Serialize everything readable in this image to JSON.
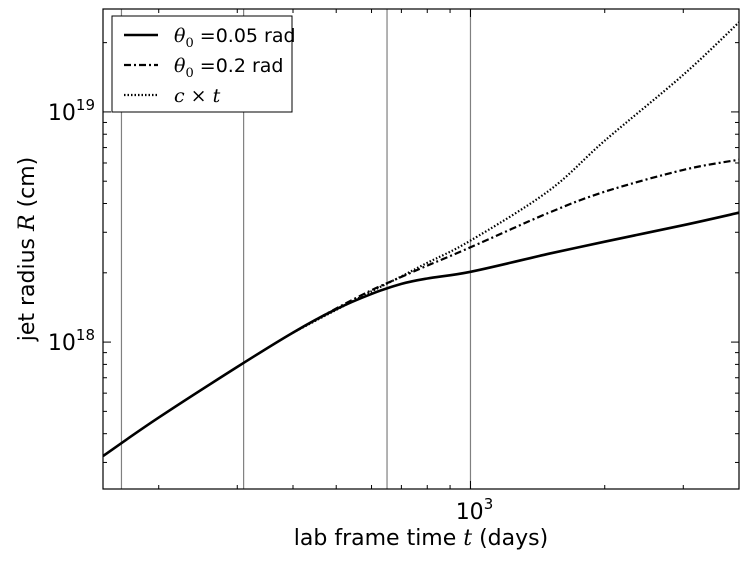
{
  "chart_data": {
    "type": "line",
    "title": "",
    "xlabel": {
      "prefix": "lab frame time ",
      "math": "t",
      "suffix": " (days)"
    },
    "ylabel": {
      "prefix": "jet radius ",
      "math": "R",
      "suffix": " (cm)"
    },
    "x_scale": "log",
    "y_scale": "log",
    "xlim": [
      150,
      4000
    ],
    "ylim": [
      2.3e+17,
      2.8e+19
    ],
    "x_ticks": [
      {
        "value": 1000,
        "label": "10",
        "exp": "3"
      }
    ],
    "y_ticks": [
      {
        "value": 1e+18,
        "label": "10",
        "exp": "18"
      },
      {
        "value": 1e+19,
        "label": "10",
        "exp": "19"
      }
    ],
    "grid": false,
    "legend_position": "top-left",
    "vertical_lines": [
      165,
      310,
      650,
      1000
    ],
    "series": [
      {
        "name": "θ0 =0.05 rad",
        "legend_math": "θ",
        "legend_sub": "0",
        "legend_rest": " =0.05 rad",
        "style": "solid",
        "x": [
          150,
          200,
          300,
          400,
          500,
          600,
          700,
          800,
          1000,
          1500,
          2000,
          3000,
          4000
        ],
        "y": [
          3.2e+17,
          4.7e+17,
          7.8e+17,
          1.1e+18,
          1.39e+18,
          1.62e+18,
          1.79e+18,
          1.89e+18,
          2.02e+18,
          2.42e+18,
          2.73e+18,
          3.22e+18,
          3.65e+18
        ]
      },
      {
        "name": "θ0 =0.2 rad",
        "legend_math": "θ",
        "legend_sub": "0",
        "legend_rest": " =0.2 rad",
        "style": "dashdot",
        "x": [
          400,
          500,
          600,
          700,
          800,
          1000,
          1500,
          2000,
          3000,
          4000
        ],
        "y": [
          1.1e+18,
          1.4e+18,
          1.68e+18,
          1.92e+18,
          2.15e+18,
          2.58e+18,
          3.65e+18,
          4.5e+18,
          5.6e+18,
          6.2e+18
        ]
      },
      {
        "name": "c × t",
        "legend_math": "c × t",
        "legend_sub": "",
        "legend_rest": "",
        "style": "dotted",
        "x": [
          400,
          500,
          600,
          700,
          800,
          1000,
          1500,
          2000,
          3000,
          4000
        ],
        "y": [
          1.1e+18,
          1.38e+18,
          1.66e+18,
          1.93e+18,
          2.21e+18,
          2.76e+18,
          4.55e+18,
          7.5e+18,
          1.45e+19,
          2.45e+19
        ]
      }
    ]
  }
}
